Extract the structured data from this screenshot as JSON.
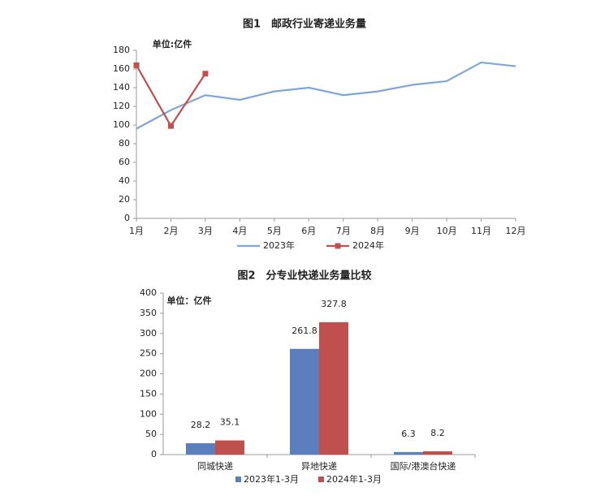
{
  "chart_data": [
    {
      "type": "line",
      "title": "图1　邮政行业寄递业务量",
      "unit": "单位:亿件",
      "categories": [
        "1月",
        "2月",
        "3月",
        "4月",
        "5月",
        "6月",
        "7月",
        "8月",
        "9月",
        "10月",
        "11月",
        "12月"
      ],
      "series": [
        {
          "name": "2023年",
          "color": "#7fa6d9",
          "marker": "none",
          "values": [
            96,
            116,
            132,
            127,
            136,
            140,
            132,
            136,
            143,
            147,
            167,
            163
          ]
        },
        {
          "name": "2024年",
          "color": "#c0504d",
          "marker": "square",
          "values": [
            164,
            99,
            155,
            null,
            null,
            null,
            null,
            null,
            null,
            null,
            null,
            null
          ]
        }
      ],
      "ylim": [
        0,
        180
      ],
      "yticks": [
        0,
        20,
        40,
        60,
        80,
        100,
        120,
        140,
        160,
        180
      ],
      "grid": false,
      "legend": "bottom"
    },
    {
      "type": "bar",
      "title": "图2　分专业快递业务量比较",
      "unit": "单位：亿件",
      "categories": [
        "同城快递",
        "异地快递",
        "国际/港澳台快递"
      ],
      "series": [
        {
          "name": "2023年1-3月",
          "color": "#5b7fbd",
          "values": [
            28.2,
            261.8,
            6.3
          ]
        },
        {
          "name": "2024年1-3月",
          "color": "#c0504d",
          "values": [
            35.1,
            327.8,
            8.2
          ]
        }
      ],
      "ylim": [
        0,
        400
      ],
      "yticks": [
        0,
        50,
        100,
        150,
        200,
        250,
        300,
        350,
        400
      ],
      "grid": false,
      "legend": "bottom"
    }
  ]
}
